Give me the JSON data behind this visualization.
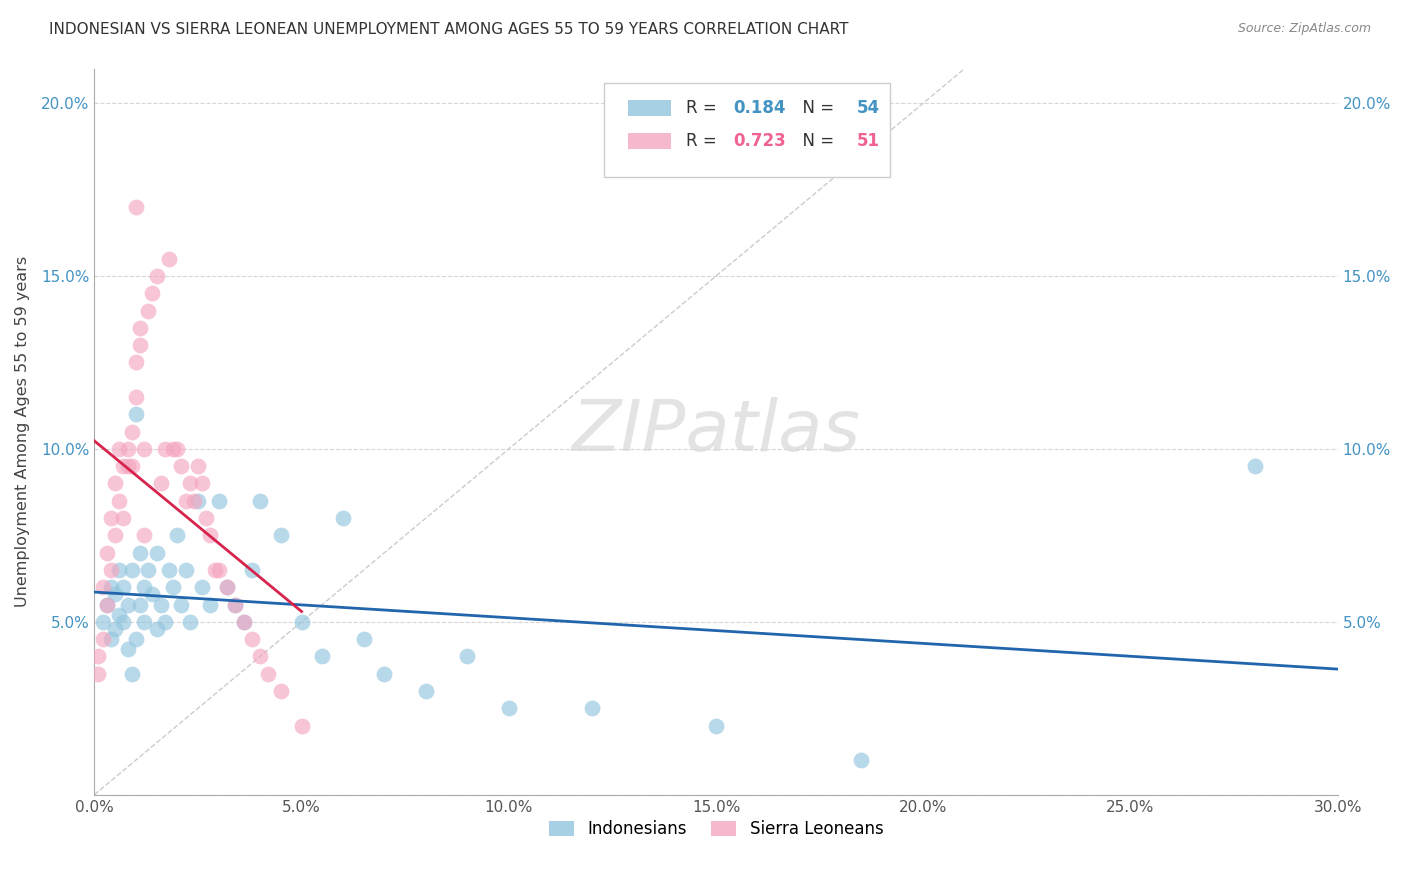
{
  "title": "INDONESIAN VS SIERRA LEONEAN UNEMPLOYMENT AMONG AGES 55 TO 59 YEARS CORRELATION CHART",
  "source": "Source: ZipAtlas.com",
  "ylabel": "Unemployment Among Ages 55 to 59 years",
  "xlim": [
    0.0,
    0.3
  ],
  "ylim": [
    0.0,
    0.21
  ],
  "xticks": [
    0.0,
    0.05,
    0.1,
    0.15,
    0.2,
    0.25,
    0.3
  ],
  "xtick_labels": [
    "0.0%",
    "5.0%",
    "10.0%",
    "15.0%",
    "20.0%",
    "25.0%",
    "30.0%"
  ],
  "yticks": [
    0.0,
    0.05,
    0.1,
    0.15,
    0.2
  ],
  "ytick_labels": [
    "",
    "5.0%",
    "10.0%",
    "15.0%",
    "20.0%"
  ],
  "indonesian_color": "#92c5de",
  "sierraleone_color": "#f4a6c0",
  "trend_indonesian_color": "#2166ac",
  "trend_sierraleone_color": "#d6244d",
  "diagonal_color": "#cccccc",
  "watermark": "ZIPatlas",
  "legend_R_indo": "0.184",
  "legend_N_indo": "54",
  "legend_R_sl": "0.723",
  "legend_N_sl": "51",
  "legend_color_indo": "#4393c3",
  "legend_color_sl": "#f06292",
  "indo_R": 0.184,
  "sl_R": 0.723,
  "indo_N": 54,
  "sl_N": 51
}
